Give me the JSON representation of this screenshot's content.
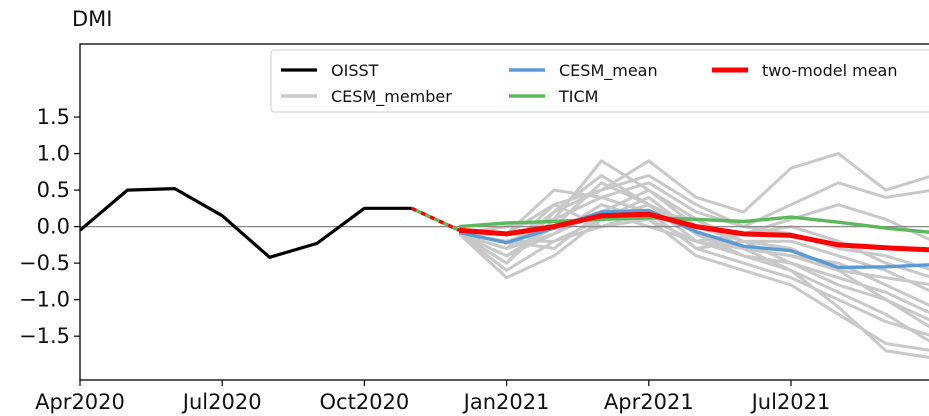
{
  "chart_data": {
    "type": "line",
    "title": "DMI",
    "xlabel": "",
    "ylabel": "",
    "ylim": [
      -2.1,
      2.5
    ],
    "y_ticks": [
      -1.5,
      -1.0,
      -0.5,
      0.0,
      0.5,
      1.0,
      1.5
    ],
    "y_tick_labels": [
      "−1.5",
      "−1.0",
      "−0.5",
      "0.0",
      "0.5",
      "1.0",
      "1.5"
    ],
    "x_ticks": [
      "Apr2020",
      "Jul2020",
      "Oct2020",
      "Jan2021",
      "Apr2021",
      "Jul2021"
    ],
    "x_months": [
      "2020-04",
      "2020-05",
      "2020-06",
      "2020-07",
      "2020-08",
      "2020-09",
      "2020-10",
      "2020-11",
      "2020-12",
      "2021-01",
      "2021-02",
      "2021-03",
      "2021-04",
      "2021-05",
      "2021-06",
      "2021-07",
      "2021-08",
      "2021-09",
      "2021-10"
    ],
    "zero_line": true,
    "legend": {
      "placement": "top-right",
      "entries": [
        {
          "label": "OISST",
          "color": "#000000"
        },
        {
          "label": "CESM_member",
          "color": "#c8c8c8"
        },
        {
          "label": "CESM_mean",
          "color": "#5b9bd5"
        },
        {
          "label": "TICM",
          "color": "#5cb85c"
        },
        {
          "label": "two-model mean",
          "color": "#ff0000"
        }
      ]
    },
    "series": [
      {
        "name": "OISST",
        "color": "#000000",
        "months": [
          "2020-04",
          "2020-05",
          "2020-06",
          "2020-07",
          "2020-08",
          "2020-09",
          "2020-10",
          "2020-11"
        ],
        "values": [
          -0.05,
          0.5,
          0.52,
          0.15,
          -0.42,
          -0.23,
          0.25,
          0.25
        ]
      },
      {
        "name": "CESM_mean",
        "color": "#5b9bd5",
        "months": [
          "2020-12",
          "2021-01",
          "2021-02",
          "2021-03",
          "2021-04",
          "2021-05",
          "2021-06",
          "2021-07",
          "2021-08",
          "2021-09",
          "2021-10"
        ],
        "values": [
          -0.08,
          -0.22,
          -0.02,
          0.2,
          0.22,
          -0.07,
          -0.27,
          -0.33,
          -0.56,
          -0.55,
          -0.52
        ]
      },
      {
        "name": "TICM",
        "color": "#5cb85c",
        "months": [
          "2020-12",
          "2021-01",
          "2021-02",
          "2021-03",
          "2021-04",
          "2021-05",
          "2021-06",
          "2021-07",
          "2021-08",
          "2021-09",
          "2021-10"
        ],
        "values": [
          0.0,
          0.05,
          0.07,
          0.1,
          0.12,
          0.1,
          0.07,
          0.13,
          0.06,
          -0.02,
          -0.08
        ]
      },
      {
        "name": "two-model mean",
        "color": "#ff0000",
        "months": [
          "2020-12",
          "2021-01",
          "2021-02",
          "2021-03",
          "2021-04",
          "2021-05",
          "2021-06",
          "2021-07",
          "2021-08",
          "2021-09",
          "2021-10"
        ],
        "values": [
          -0.05,
          -0.1,
          0.0,
          0.15,
          0.17,
          0.0,
          -0.1,
          -0.12,
          -0.25,
          -0.29,
          -0.32
        ]
      }
    ],
    "bridge_segment": {
      "from": {
        "month": "2020-11",
        "value": 0.25
      },
      "to": {
        "month": "2020-12",
        "value": -0.05
      },
      "colors": [
        "#ff0000",
        "#5cb85c"
      ]
    },
    "members": {
      "name": "CESM_member",
      "color": "#c8c8c8",
      "months": [
        "2020-12",
        "2021-01",
        "2021-02",
        "2021-03",
        "2021-04",
        "2021-05",
        "2021-06",
        "2021-07",
        "2021-08",
        "2021-09",
        "2021-10"
      ],
      "runs": [
        [
          -0.1,
          -0.7,
          -0.4,
          0.1,
          0.3,
          -0.2,
          -0.4,
          -0.6,
          -0.9,
          -1.2,
          -1.6
        ],
        [
          -0.1,
          -0.5,
          0.1,
          0.9,
          0.5,
          0.1,
          -0.2,
          -0.3,
          -0.6,
          -1.0,
          -1.4
        ],
        [
          -0.1,
          -0.3,
          0.2,
          0.5,
          0.9,
          0.4,
          0.2,
          0.8,
          1.0,
          0.5,
          0.7
        ],
        [
          -0.1,
          -0.1,
          0.5,
          0.4,
          0.6,
          0.2,
          0.0,
          0.3,
          0.6,
          0.4,
          0.5
        ],
        [
          -0.1,
          -0.2,
          -0.3,
          0.2,
          0.2,
          -0.3,
          -0.5,
          -0.7,
          -1.0,
          -1.3,
          -1.5
        ],
        [
          -0.1,
          -0.4,
          -0.1,
          0.3,
          0.1,
          -0.2,
          -0.3,
          -0.4,
          -0.5,
          -0.8,
          -1.1
        ],
        [
          -0.1,
          -0.2,
          0.0,
          0.6,
          0.3,
          0.0,
          -0.1,
          0.1,
          0.3,
          0.1,
          -0.2
        ],
        [
          -0.1,
          -0.3,
          0.3,
          0.0,
          0.2,
          0.1,
          -0.3,
          -0.6,
          -1.1,
          -1.7,
          -1.8
        ],
        [
          -0.1,
          -0.6,
          -0.2,
          0.1,
          0.4,
          -0.1,
          -0.4,
          -0.5,
          -0.7,
          -0.9,
          -1.2
        ],
        [
          -0.1,
          0.0,
          0.1,
          0.4,
          0.2,
          -0.3,
          -0.2,
          -0.2,
          -0.4,
          -0.6,
          -0.9
        ],
        [
          -0.1,
          -0.4,
          0.0,
          0.2,
          0.5,
          0.0,
          -0.2,
          -0.5,
          -0.8,
          -1.0,
          -1.3
        ],
        [
          -0.1,
          -0.2,
          -0.2,
          0.0,
          0.1,
          -0.4,
          -0.6,
          -0.8,
          -1.2,
          -1.6,
          -1.7
        ],
        [
          -0.1,
          -0.5,
          0.2,
          0.7,
          0.3,
          -0.1,
          -0.3,
          -0.4,
          -0.6,
          -0.7,
          -0.8
        ],
        [
          -0.1,
          -0.3,
          -0.1,
          0.2,
          0.0,
          -0.2,
          -0.1,
          0.0,
          -0.2,
          -0.5,
          -0.7
        ],
        [
          -0.1,
          -0.1,
          0.3,
          0.5,
          0.7,
          0.3,
          0.0,
          -0.1,
          -0.3,
          -0.4,
          -0.6
        ]
      ]
    }
  }
}
